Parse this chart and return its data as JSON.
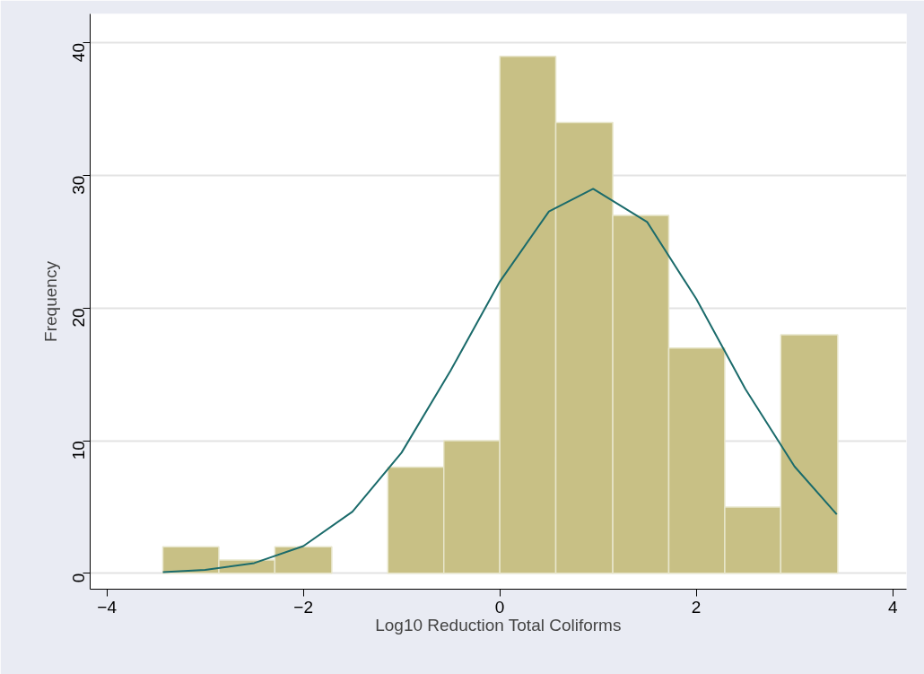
{
  "chart_data": {
    "type": "histogram",
    "xlabel": "Log10 Reduction Total Coliforms",
    "ylabel": "Frequency",
    "bins": [
      -3.43,
      -2.86,
      -2.29,
      -1.71,
      -1.14,
      -0.57,
      0,
      0.57,
      1.15,
      1.72,
      2.29,
      2.86,
      3.44
    ],
    "values": [
      2,
      1,
      2,
      0,
      8,
      10,
      39,
      34,
      27,
      17,
      5,
      18
    ],
    "color": "#c8c085",
    "series": [
      {
        "type": "line",
        "color": "#1b6b6b",
        "x": [
          -3.43,
          -3,
          -2.5,
          -2,
          -1.5,
          -1,
          -0.5,
          0,
          0.5,
          0.95,
          1.5,
          2,
          2.5,
          3,
          3.43
        ],
        "values": [
          0.08,
          0.25,
          0.77,
          2.05,
          4.65,
          9.1,
          15.3,
          22.0,
          27.3,
          29,
          26.5,
          20.7,
          13.9,
          8.06,
          4.45
        ]
      }
    ],
    "xlim": [
      -4.17,
      4.14
    ],
    "ylim": [
      -1.2,
      42.2
    ],
    "xticks": [
      -4,
      -2,
      0,
      2,
      4
    ],
    "yticks": [
      0,
      10,
      20,
      30,
      40
    ],
    "grid": "y",
    "marker": "none",
    "line_style": "solid"
  }
}
